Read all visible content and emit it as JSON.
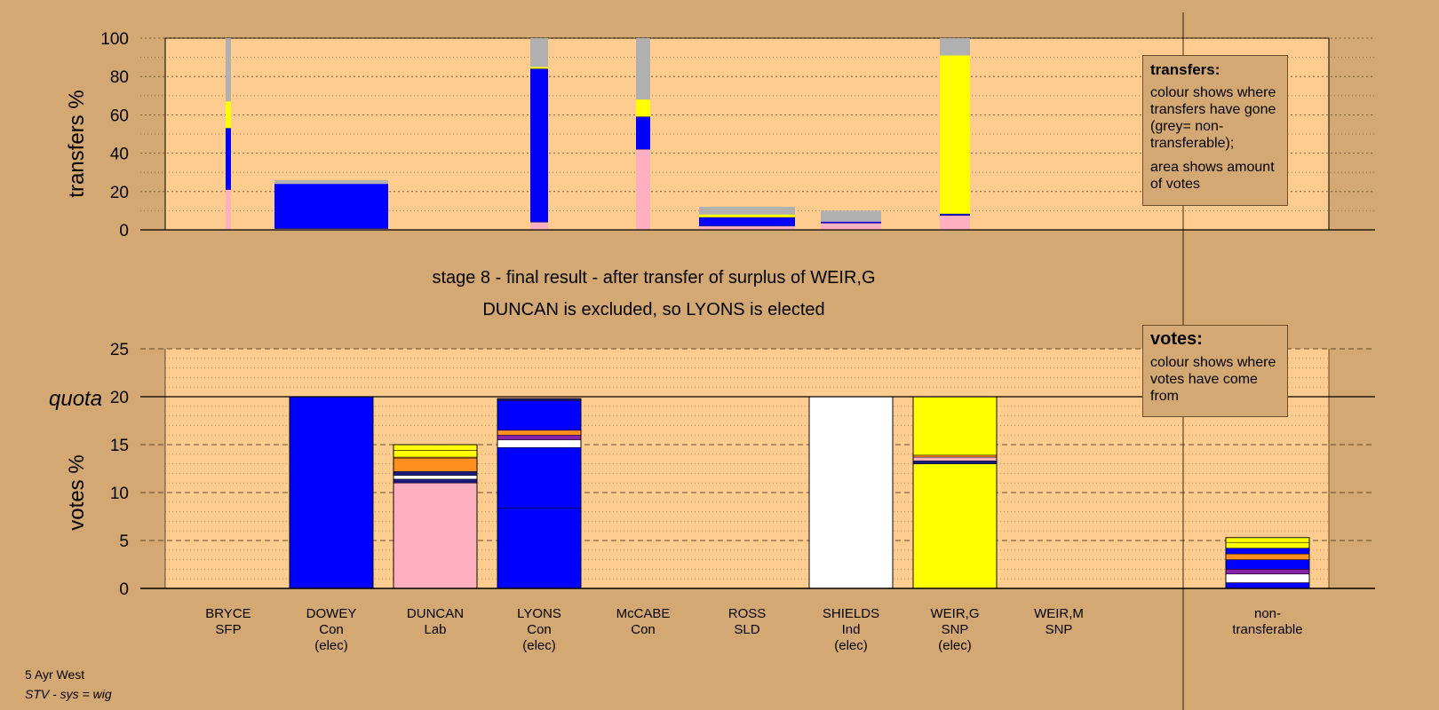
{
  "chart_data": [
    {
      "type": "bar",
      "stacked": true,
      "panel": "transfers",
      "ylabel": "transfers %",
      "ylim": [
        0,
        100
      ],
      "yticks": [
        0,
        20,
        40,
        60,
        80,
        100
      ],
      "categories": [
        "BRYCE",
        "DOWEY",
        "DUNCAN",
        "LYONS",
        "McCABE",
        "ROSS",
        "SHIELDS",
        "WEIR,G",
        "WEIR,M"
      ],
      "bars": [
        {
          "category": "BRYCE",
          "width_share": 0.15,
          "segments": [
            {
              "color": "#ffb0c0",
              "from": 0,
              "to": 21
            },
            {
              "color": "#0000ff",
              "from": 21,
              "to": 53
            },
            {
              "color": "#ffff00",
              "from": 53,
              "to": 67
            },
            {
              "color": "#b0b0b0",
              "from": 67,
              "to": 100
            }
          ]
        },
        {
          "category": "DOWEY",
          "width_share": 1.0,
          "segments": [
            {
              "color": "#ffb0c0",
              "from": 0,
              "to": 0.6
            },
            {
              "color": "#0000ff",
              "from": 0.6,
              "to": 24
            },
            {
              "color": "#b0b0b0",
              "from": 24,
              "to": 26
            }
          ]
        },
        {
          "category": "LYONS",
          "width_share": 0.2,
          "segments": [
            {
              "color": "#ffb0c0",
              "from": 0,
              "to": 4
            },
            {
              "color": "#0000ff",
              "from": 4,
              "to": 84
            },
            {
              "color": "#ffff00",
              "from": 84,
              "to": 85
            },
            {
              "color": "#b0b0b0",
              "from": 85,
              "to": 100
            }
          ]
        },
        {
          "category": "McCABE",
          "width_share": 0.2,
          "segments": [
            {
              "color": "#ffb0c0",
              "from": 0,
              "to": 42
            },
            {
              "color": "#0000ff",
              "from": 42,
              "to": 59
            },
            {
              "color": "#ffff00",
              "from": 59,
              "to": 68
            },
            {
              "color": "#b0b0b0",
              "from": 68,
              "to": 100
            }
          ]
        },
        {
          "category": "ROSS",
          "width_share": 1.0,
          "segments": [
            {
              "color": "#ffb0c0",
              "from": 0,
              "to": 2
            },
            {
              "color": "#0000ff",
              "from": 2,
              "to": 6.5
            },
            {
              "color": "#ffff00",
              "from": 6.5,
              "to": 8
            },
            {
              "color": "#b0b0b0",
              "from": 8,
              "to": 12
            }
          ]
        },
        {
          "category": "SHIELDS",
          "width_share": 0.75,
          "segments": [
            {
              "color": "#ffb0c0",
              "from": 0,
              "to": 3.5
            },
            {
              "color": "#0000ff",
              "from": 3.5,
              "to": 4.3
            },
            {
              "color": "#b0b0b0",
              "from": 4.3,
              "to": 10
            }
          ]
        },
        {
          "category": "WEIR,G",
          "width_share": 0.37,
          "segments": [
            {
              "color": "#ffb0c0",
              "from": 0,
              "to": 7.5
            },
            {
              "color": "#0000ff",
              "from": 7.5,
              "to": 8.3
            },
            {
              "color": "#ffff00",
              "from": 8.3,
              "to": 91
            },
            {
              "color": "#b0b0b0",
              "from": 91,
              "to": 100
            }
          ]
        }
      ]
    },
    {
      "type": "bar",
      "stacked": true,
      "panel": "votes",
      "ylabel": "votes %",
      "ylim": [
        0,
        25
      ],
      "yticks": [
        0,
        5,
        10,
        15,
        20,
        25
      ],
      "quota": 20,
      "quota_label": "quota",
      "categories": [
        "BRYCE\nSFP",
        "DOWEY\nCon\n(elec)",
        "DUNCAN\nLab",
        "LYONS\nCon\n(elec)",
        "McCABE\nCon",
        "ROSS\nSLD",
        "SHIELDS\nInd\n(elec)",
        "WEIR,G\nSNP\n(elec)",
        "WEIR,M\nSNP",
        "non-\ntransferable"
      ],
      "bars": [
        {
          "category": "DOWEY",
          "segments": [
            {
              "color": "#0000ff",
              "from": 0,
              "to": 20
            }
          ]
        },
        {
          "category": "DUNCAN",
          "segments": [
            {
              "color": "#ffb0c0",
              "from": 0,
              "to": 11
            },
            {
              "color": "#1a1a80",
              "from": 11,
              "to": 11.4
            },
            {
              "color": "#ffffff",
              "from": 11.4,
              "to": 11.8
            },
            {
              "color": "#1a1a80",
              "from": 11.8,
              "to": 12.2
            },
            {
              "color": "#ff9020",
              "from": 12.2,
              "to": 13.6
            },
            {
              "color": "#ff9020",
              "from": 13.6,
              "to": 13.7
            },
            {
              "color": "#ffff00",
              "from": 13.7,
              "to": 14.4
            },
            {
              "color": "#ffff00",
              "from": 14.4,
              "to": 15
            }
          ]
        },
        {
          "category": "LYONS",
          "segments": [
            {
              "color": "#0000ff",
              "from": 0,
              "to": 8.4
            },
            {
              "color": "#0000ff",
              "from": 8.4,
              "to": 14.7
            },
            {
              "color": "#ffffff",
              "from": 14.7,
              "to": 15.5
            },
            {
              "color": "#8822aa",
              "from": 15.5,
              "to": 16
            },
            {
              "color": "#ff9020",
              "from": 16,
              "to": 16.5
            },
            {
              "color": "#0000ff",
              "from": 16.5,
              "to": 19.6
            },
            {
              "color": "#1a1a80",
              "from": 19.6,
              "to": 19.8
            }
          ]
        },
        {
          "category": "SHIELDS",
          "segments": [
            {
              "color": "#ffffff",
              "from": 0,
              "to": 20
            }
          ]
        },
        {
          "category": "WEIR,G",
          "segments": [
            {
              "color": "#ffff00",
              "from": 0,
              "to": 13
            },
            {
              "color": "#1a1a80",
              "from": 13,
              "to": 13.3
            },
            {
              "color": "#ffb0c0",
              "from": 13.3,
              "to": 13.7
            },
            {
              "color": "#ff9020",
              "from": 13.7,
              "to": 13.9
            },
            {
              "color": "#ffff00",
              "from": 13.9,
              "to": 20
            }
          ]
        },
        {
          "category": "non-transferable",
          "segments": [
            {
              "color": "#0000ff",
              "from": 0,
              "to": 0.6
            },
            {
              "color": "#ffffff",
              "from": 0.6,
              "to": 1.5
            },
            {
              "color": "#8822aa",
              "from": 1.5,
              "to": 2
            },
            {
              "color": "#0000ff",
              "from": 2,
              "to": 3
            },
            {
              "color": "#ff9020",
              "from": 3,
              "to": 3.6
            },
            {
              "color": "#0000ff",
              "from": 3.6,
              "to": 4.2
            },
            {
              "color": "#ffff00",
              "from": 4.2,
              "to": 4.8
            },
            {
              "color": "#ffff00",
              "from": 4.8,
              "to": 5.3
            }
          ]
        }
      ]
    }
  ],
  "titles": {
    "stage_line": "stage 8 - final result - after transfer of surplus of WEIR,G",
    "result_line": "DUNCAN is excluded, so LYONS is elected"
  },
  "legends": {
    "transfers": {
      "heading": "transfers:",
      "line1": "colour shows where transfers have gone (grey= non-transferable);",
      "line2": "area shows amount of votes"
    },
    "votes": {
      "heading": "votes:",
      "line1": "colour shows where votes have come from"
    }
  },
  "footer": {
    "ward": "5 Ayr West",
    "system": "STV - sys = wig"
  },
  "colors": {
    "background": "#d4a872",
    "plot_area": "#ffcc90"
  }
}
